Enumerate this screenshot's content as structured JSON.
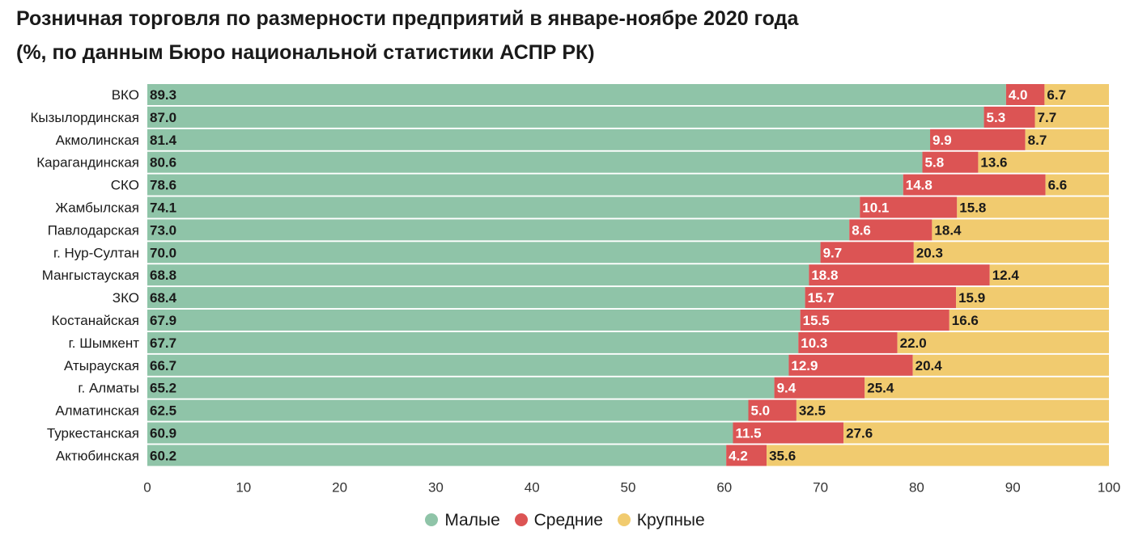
{
  "chart_data": {
    "type": "bar",
    "orientation": "horizontal",
    "stacked": true,
    "title": "Розничная торговля по размерности предприятий в январе-ноябре 2020 года",
    "subtitle": "(%, по данным Бюро национальной статистики АСПР РК)",
    "categories": [
      "ВКО",
      "Кызылординская",
      "Акмолинская",
      "Карагандинская",
      "СКО",
      "Жамбылская",
      "Павлодарская",
      "г. Нур-Султан",
      "Мангыстауская",
      "ЗКО",
      "Костанайская",
      "г. Шымкент",
      "Атырауская",
      "г. Алматы",
      "Алматинская",
      "Туркестанская",
      "Актюбинская"
    ],
    "series": [
      {
        "name": "Малые",
        "color": "#8fc4a8",
        "values": [
          89.3,
          87.0,
          81.4,
          80.6,
          78.6,
          74.1,
          73.0,
          70.0,
          68.8,
          68.4,
          67.9,
          67.7,
          66.7,
          65.2,
          62.5,
          60.9,
          60.2
        ],
        "labels": [
          "89.3",
          "87.0",
          "81.4",
          "80.6",
          "78.6",
          "74.1",
          "73.0",
          "70.0",
          "68.8",
          "68.4",
          "67.9",
          "67.7",
          "66.7",
          "65.2",
          "62.5",
          "60.9",
          "60.2"
        ]
      },
      {
        "name": "Средние",
        "color": "#dc5454",
        "values": [
          4.0,
          5.3,
          9.9,
          5.8,
          14.8,
          10.1,
          8.6,
          9.7,
          18.8,
          15.7,
          15.5,
          10.3,
          12.9,
          9.4,
          5.0,
          11.5,
          4.2
        ],
        "labels": [
          "4.0",
          "5.3",
          "9.9",
          "5.8",
          "14.8",
          "10.1",
          "8.6",
          "9.7",
          "18.8",
          "15.7",
          "15.5",
          "10.3",
          "12.9",
          "9.4",
          "5.0",
          "11.5",
          "4.2"
        ]
      },
      {
        "name": "Крупные",
        "color": "#f1cb6f",
        "values": [
          6.7,
          7.7,
          8.7,
          13.6,
          6.6,
          15.8,
          18.4,
          20.3,
          12.4,
          15.9,
          16.6,
          22.0,
          20.4,
          25.4,
          32.5,
          27.6,
          35.6
        ],
        "labels": [
          "6.7",
          "7.7",
          "8.7",
          "13.6",
          "6.6",
          "15.8",
          "18.4",
          "20.3",
          "12.4",
          "15.9",
          "16.6",
          "22.0",
          "20.4",
          "25.4",
          "32.5",
          "27.6",
          "35.6"
        ]
      }
    ],
    "xlim": [
      0,
      100
    ],
    "xticks": [
      "0",
      "10",
      "20",
      "30",
      "40",
      "50",
      "60",
      "70",
      "80",
      "90",
      "100"
    ],
    "xlabel": "",
    "ylabel": "",
    "grid": false,
    "legend_position": "bottom"
  }
}
